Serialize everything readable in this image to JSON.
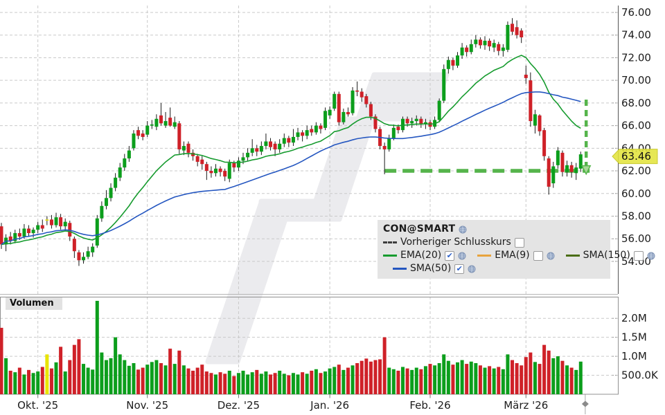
{
  "legend": {
    "title": "CON@SMART",
    "rows": [
      {
        "items": [
          {
            "type": "title",
            "label": "CON@SMART",
            "globe": true
          }
        ]
      },
      {
        "items": [
          {
            "type": "indicator",
            "label": "Vorheriger Schlusskurs",
            "swatch": "dashed",
            "swatch_color": "#3c3c3c",
            "checkbox": "unchecked",
            "globe": false
          }
        ]
      },
      {
        "items": [
          {
            "type": "indicator",
            "label": "EMA(20)",
            "swatch": "line",
            "swatch_color": "#169b2e",
            "checkbox": "checked",
            "globe": true
          },
          {
            "type": "indicator",
            "label": "EMA(9)",
            "swatch": "line",
            "swatch_color": "#e8a33d",
            "checkbox": "unchecked",
            "globe": true
          },
          {
            "type": "indicator",
            "label": "SMA(150)",
            "swatch": "line",
            "swatch_color": "#4a6d15",
            "checkbox": "unchecked",
            "globe": true
          }
        ]
      },
      {
        "items": [
          {
            "type": "indicator",
            "label": "SMA(50)",
            "swatch": "line",
            "swatch_color": "#2456c0",
            "checkbox": "checked",
            "globe": true
          }
        ]
      }
    ]
  },
  "volume_pane": {
    "label": "Volumen"
  },
  "chart_data": {
    "type": "candlestick+volume",
    "symbol": "CON@SMART",
    "last_price": 63.46,
    "last_price_label": "63.46",
    "price_axis_ticks": [
      76,
      74,
      72,
      70,
      68,
      66,
      64,
      62,
      60,
      58,
      56,
      54
    ],
    "price_axis_range": [
      51.1,
      76.6
    ],
    "volume_axis_ticks": [
      {
        "value_k": 2000,
        "label": "2.0M"
      },
      {
        "value_k": 1500,
        "label": "1.5M"
      },
      {
        "value_k": 1000,
        "label": "1.0M"
      },
      {
        "value_k": 500,
        "label": "500.0K"
      }
    ],
    "months": [
      {
        "label": "Okt. '25",
        "start_index": 8
      },
      {
        "label": "Nov. '25",
        "start_index": 32
      },
      {
        "label": "Dez. '25",
        "start_index": 52
      },
      {
        "label": "Jan. '26",
        "start_index": 72
      },
      {
        "label": "Feb. '26",
        "start_index": 94
      },
      {
        "label": "März '26",
        "start_index": 115
      }
    ],
    "indicators_shown": [
      {
        "name": "EMA(20)",
        "kind": "ema",
        "period": 20,
        "color": "#169b2e"
      },
      {
        "name": "SMA(50)",
        "kind": "sma",
        "period": 50,
        "color": "#2456c0"
      }
    ],
    "annotations": {
      "support_line_price": 62.0,
      "support_line_start_index": 84,
      "arrow_from_price": 68.3,
      "arrow_to_price": 62.45
    },
    "event_marker_index": 10,
    "candles_ohlc": [
      [
        57.1,
        57.4,
        55.1,
        55.5
      ],
      [
        55.5,
        56.4,
        54.9,
        56.1
      ],
      [
        56.2,
        56.6,
        55.5,
        55.8
      ],
      [
        55.8,
        56.8,
        55.6,
        56.5
      ],
      [
        56.5,
        56.9,
        55.9,
        56.2
      ],
      [
        56.2,
        57.3,
        56.0,
        56.9
      ],
      [
        56.9,
        57.2,
        56.2,
        56.5
      ],
      [
        56.5,
        57.0,
        56.1,
        56.8
      ],
      [
        56.8,
        57.5,
        56.5,
        57.2
      ],
      [
        57.2,
        57.7,
        56.6,
        56.9
      ],
      [
        57.6,
        58.0,
        57.2,
        57.7
      ],
      [
        57.7,
        58.1,
        56.9,
        57.2
      ],
      [
        57.2,
        58.3,
        57.0,
        57.9
      ],
      [
        57.9,
        58.2,
        56.8,
        57.1
      ],
      [
        57.1,
        57.8,
        56.7,
        57.5
      ],
      [
        57.4,
        57.6,
        55.8,
        56.2
      ],
      [
        56.0,
        56.2,
        54.3,
        54.9
      ],
      [
        54.8,
        55.0,
        53.6,
        54.1
      ],
      [
        54.1,
        54.8,
        53.8,
        54.4
      ],
      [
        54.4,
        55.3,
        54.2,
        54.9
      ],
      [
        54.8,
        55.6,
        54.4,
        55.3
      ],
      [
        55.4,
        58.1,
        55.2,
        57.8
      ],
      [
        57.8,
        59.3,
        57.5,
        58.9
      ],
      [
        58.9,
        60.3,
        58.6,
        59.6
      ],
      [
        59.6,
        60.9,
        59.3,
        60.5
      ],
      [
        60.5,
        61.8,
        60.2,
        61.4
      ],
      [
        61.4,
        62.7,
        61.1,
        62.3
      ],
      [
        62.3,
        63.5,
        62.0,
        63.1
      ],
      [
        63.1,
        64.2,
        62.8,
        63.8
      ],
      [
        64.0,
        65.6,
        63.8,
        65.3
      ],
      [
        65.6,
        65.9,
        64.8,
        65.1
      ],
      [
        65.3,
        65.6,
        64.7,
        65.0
      ],
      [
        65.2,
        66.4,
        65.0,
        66.0
      ],
      [
        66.0,
        66.5,
        65.7,
        66.1
      ],
      [
        65.9,
        67.0,
        65.6,
        66.6
      ],
      [
        66.9,
        68.0,
        66.0,
        66.2
      ],
      [
        66.0,
        67.2,
        65.8,
        66.4
      ],
      [
        66.7,
        67.6,
        65.9,
        66.0
      ],
      [
        65.9,
        66.8,
        65.7,
        66.3
      ],
      [
        66.2,
        66.4,
        63.5,
        63.9
      ],
      [
        63.8,
        64.6,
        63.4,
        64.2
      ],
      [
        64.4,
        64.6,
        63.2,
        63.6
      ],
      [
        63.6,
        63.9,
        62.9,
        63.3
      ],
      [
        63.3,
        63.5,
        62.4,
        62.8
      ],
      [
        63.0,
        63.3,
        62.1,
        62.6
      ],
      [
        62.6,
        62.8,
        61.2,
        62.0
      ],
      [
        62.0,
        62.4,
        61.4,
        61.8
      ],
      [
        61.8,
        62.6,
        61.5,
        62.2
      ],
      [
        62.2,
        62.4,
        61.5,
        61.9
      ],
      [
        62.0,
        62.2,
        61.1,
        61.5
      ],
      [
        61.3,
        63.0,
        61.0,
        62.7
      ],
      [
        62.7,
        62.9,
        61.9,
        62.3
      ],
      [
        62.3,
        63.2,
        62.0,
        62.9
      ],
      [
        62.9,
        63.6,
        62.6,
        63.2
      ],
      [
        63.2,
        64.0,
        62.9,
        63.6
      ],
      [
        63.6,
        64.8,
        63.3,
        64.0
      ],
      [
        64.0,
        64.3,
        63.3,
        63.7
      ],
      [
        63.7,
        64.6,
        63.4,
        64.2
      ],
      [
        64.2,
        65.3,
        63.9,
        64.6
      ],
      [
        64.6,
        64.9,
        63.8,
        64.1
      ],
      [
        64.4,
        64.6,
        63.3,
        63.9
      ],
      [
        63.9,
        64.8,
        63.6,
        64.4
      ],
      [
        64.4,
        65.3,
        64.1,
        64.9
      ],
      [
        64.9,
        65.1,
        64.1,
        64.5
      ],
      [
        64.5,
        65.7,
        64.2,
        65.0
      ],
      [
        65.0,
        65.8,
        64.7,
        65.4
      ],
      [
        65.4,
        65.6,
        64.6,
        65.1
      ],
      [
        65.1,
        66.0,
        64.8,
        65.6
      ],
      [
        65.7,
        66.0,
        65.1,
        65.4
      ],
      [
        65.4,
        66.3,
        65.2,
        66.0
      ],
      [
        66.0,
        66.2,
        65.3,
        65.7
      ],
      [
        65.8,
        67.6,
        65.6,
        67.3
      ],
      [
        66.9,
        67.7,
        66.6,
        67.4
      ],
      [
        67.5,
        69.0,
        67.3,
        68.8
      ],
      [
        68.8,
        69.0,
        66.0,
        66.3
      ],
      [
        66.3,
        67.5,
        66.1,
        67.2
      ],
      [
        67.2,
        67.6,
        66.8,
        67.0
      ],
      [
        67.1,
        69.4,
        66.9,
        69.1
      ],
      [
        69.1,
        69.9,
        68.6,
        69.0
      ],
      [
        69.0,
        69.3,
        68.1,
        68.5
      ],
      [
        68.6,
        68.8,
        67.6,
        67.9
      ],
      [
        67.9,
        68.1,
        66.5,
        66.8
      ],
      [
        66.8,
        67.0,
        65.4,
        65.7
      ],
      [
        65.7,
        65.9,
        63.9,
        64.2
      ],
      [
        64.2,
        64.5,
        61.7,
        63.9
      ],
      [
        63.9,
        65.2,
        63.7,
        64.9
      ],
      [
        64.9,
        66.1,
        64.7,
        65.8
      ],
      [
        65.9,
        66.1,
        65.3,
        65.6
      ],
      [
        65.6,
        66.8,
        65.4,
        66.6
      ],
      [
        66.6,
        66.8,
        65.9,
        66.2
      ],
      [
        66.2,
        66.7,
        65.8,
        66.4
      ],
      [
        66.4,
        66.9,
        66.0,
        66.6
      ],
      [
        66.6,
        66.8,
        65.8,
        66.1
      ],
      [
        66.1,
        66.6,
        65.7,
        66.3
      ],
      [
        66.3,
        66.5,
        65.6,
        65.9
      ],
      [
        65.9,
        66.8,
        65.7,
        66.5
      ],
      [
        66.5,
        68.4,
        66.3,
        68.2
      ],
      [
        68.2,
        71.4,
        68.0,
        71.0
      ],
      [
        71.0,
        72.1,
        70.6,
        71.8
      ],
      [
        71.8,
        72.0,
        70.9,
        71.3
      ],
      [
        71.3,
        72.5,
        71.1,
        72.2
      ],
      [
        72.2,
        73.3,
        71.9,
        72.9
      ],
      [
        72.9,
        73.1,
        72.1,
        72.5
      ],
      [
        72.5,
        73.6,
        72.3,
        73.2
      ],
      [
        73.2,
        74.0,
        72.9,
        73.6
      ],
      [
        73.6,
        73.8,
        72.8,
        73.1
      ],
      [
        73.1,
        73.9,
        72.7,
        73.5
      ],
      [
        73.5,
        73.7,
        72.6,
        73.0
      ],
      [
        72.9,
        73.6,
        72.5,
        73.3
      ],
      [
        73.2,
        73.4,
        72.2,
        72.6
      ],
      [
        72.6,
        73.2,
        72.1,
        72.9
      ],
      [
        72.7,
        75.2,
        72.5,
        74.9
      ],
      [
        75.0,
        75.5,
        74.0,
        74.3
      ],
      [
        74.7,
        75.3,
        73.7,
        74.0
      ],
      [
        74.4,
        74.6,
        73.3,
        73.8
      ],
      [
        70.5,
        71.3,
        69.7,
        70.2
      ],
      [
        70.0,
        70.7,
        65.9,
        66.4
      ],
      [
        66.0,
        67.4,
        65.3,
        67.0
      ],
      [
        66.9,
        67.0,
        65.1,
        65.5
      ],
      [
        65.6,
        65.8,
        62.9,
        63.3
      ],
      [
        63.1,
        63.3,
        59.9,
        60.6
      ],
      [
        60.9,
        62.8,
        60.5,
        62.4
      ],
      [
        62.5,
        64.1,
        62.2,
        63.8
      ],
      [
        63.6,
        63.8,
        61.5,
        61.9
      ],
      [
        61.9,
        62.9,
        61.5,
        62.5
      ],
      [
        62.5,
        62.8,
        61.4,
        61.9
      ],
      [
        61.8,
        62.7,
        61.2,
        62.3
      ],
      [
        62.2,
        63.7,
        61.9,
        63.46
      ]
    ],
    "volumes_k": [
      1750,
      950,
      620,
      580,
      700,
      520,
      640,
      560,
      600,
      720,
      1050,
      680,
      840,
      1250,
      600,
      900,
      1300,
      1450,
      800,
      700,
      650,
      2460,
      1100,
      900,
      950,
      1500,
      1050,
      900,
      750,
      820,
      650,
      700,
      780,
      850,
      900,
      820,
      760,
      1200,
      800,
      1150,
      760,
      680,
      620,
      700,
      780,
      600,
      560,
      520,
      580,
      540,
      620,
      480,
      560,
      620,
      520,
      580,
      640,
      540,
      600,
      520,
      560,
      620,
      540,
      500,
      560,
      520,
      580,
      540,
      620,
      660,
      560,
      600,
      680,
      720,
      780,
      640,
      700,
      760,
      820,
      880,
      940,
      860,
      900,
      920,
      1500,
      700,
      660,
      620,
      720,
      680,
      640,
      700,
      660,
      740,
      800,
      760,
      820,
      1050,
      880,
      780,
      840,
      900,
      800,
      860,
      820,
      760,
      700,
      740,
      680,
      720,
      660,
      1050,
      900,
      820,
      760,
      980,
      1100,
      850,
      800,
      1300,
      1150,
      950,
      1000,
      880,
      760,
      700,
      640,
      860
    ],
    "colors": {
      "up": "#0c9e1c",
      "down": "#cf2128",
      "event": "#e8e400",
      "annotation": "#55b44b",
      "annotation_fill": "#a6d897",
      "grid": "#c9c9c9",
      "axis_line": "#555555",
      "pane_border": "#909090",
      "axis_text": "#1c1c1c",
      "wick": "#1a1a1a",
      "watermark": "#ebebee",
      "tag_bg": "#e3e43c",
      "marker": "#8a8a8a"
    }
  }
}
